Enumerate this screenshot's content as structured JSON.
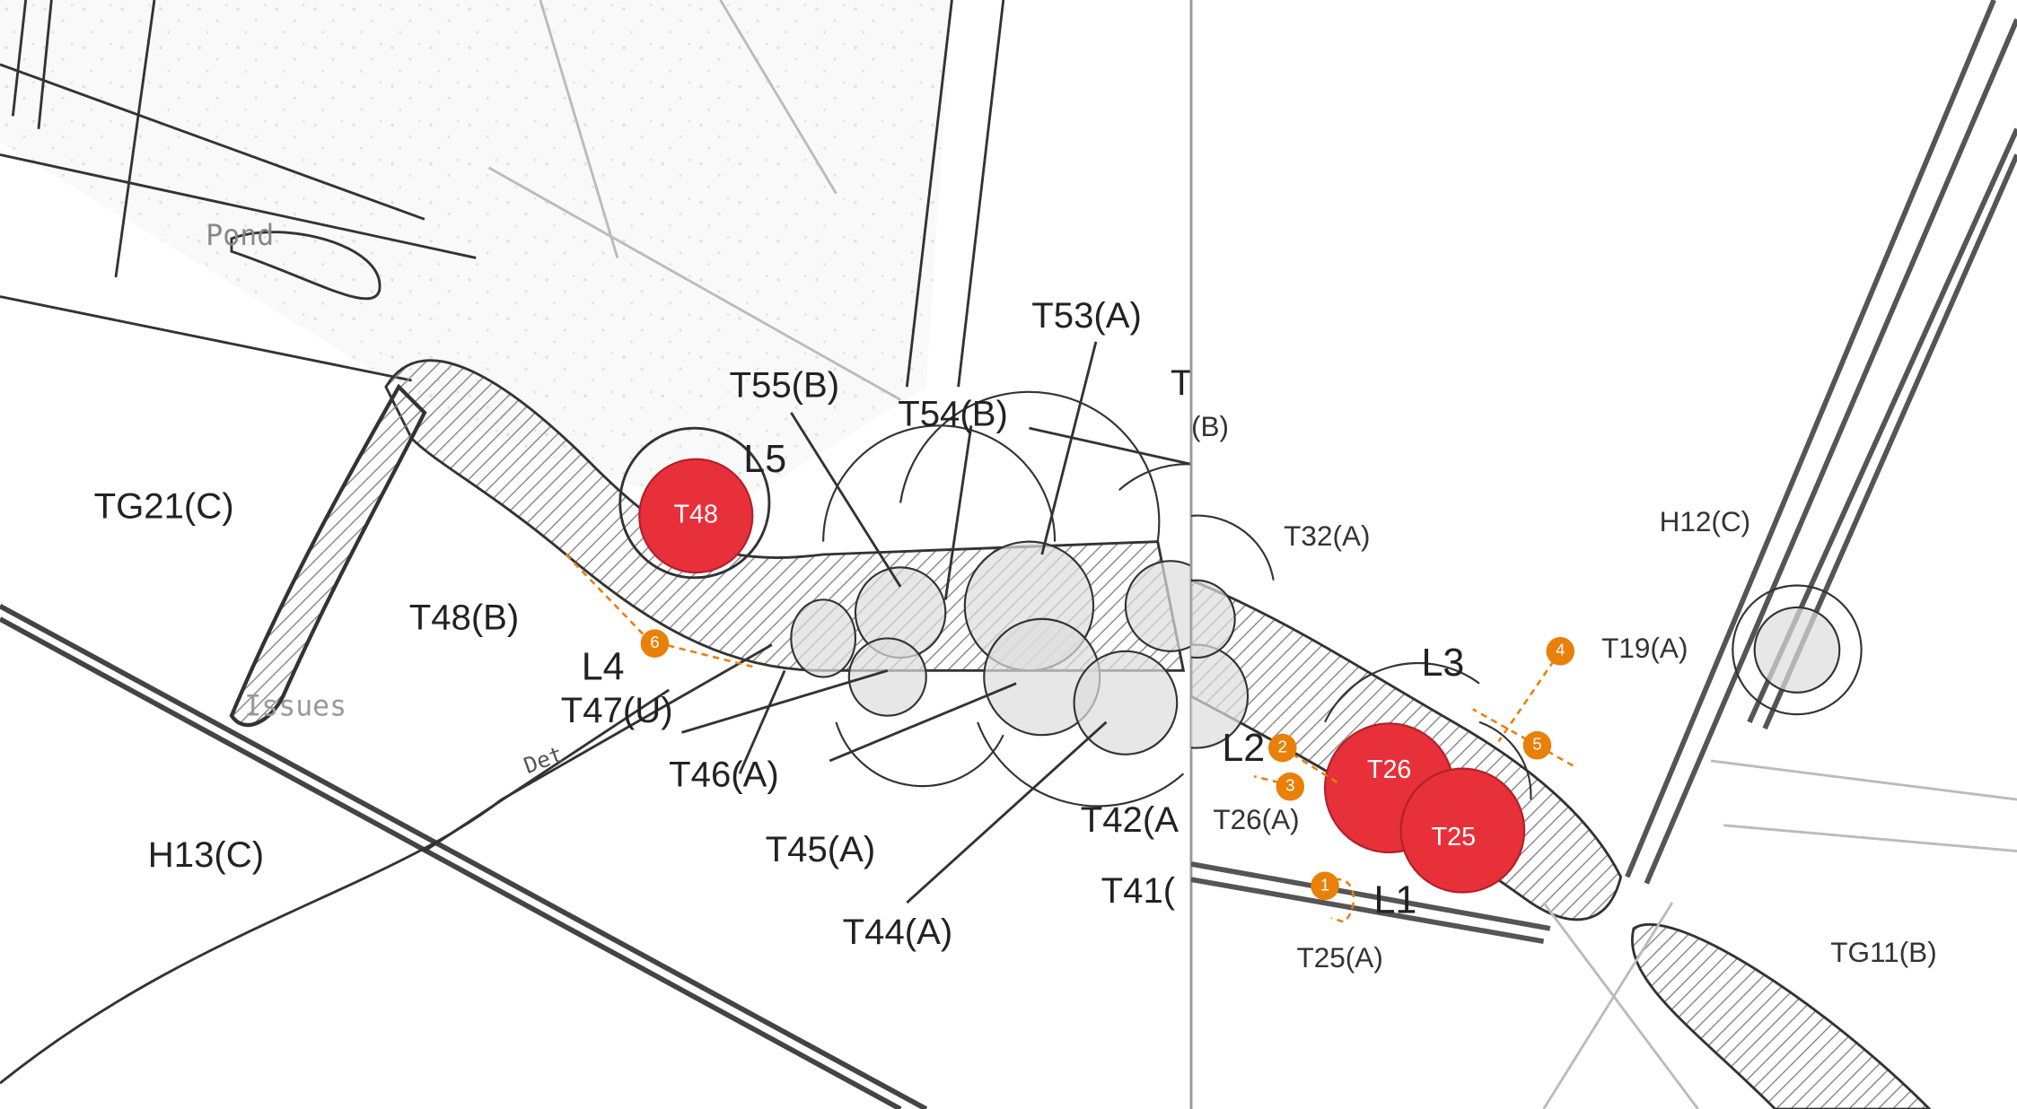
{
  "left_panel": {
    "annotations": [
      "Pond",
      "Issues",
      "Det"
    ],
    "tree_labels": [
      "TG21(C)",
      "T48(B)",
      "T47(U)",
      "T46(A)",
      "T45(A)",
      "T44(A)",
      "T42(A",
      "T41(",
      "H13(C)",
      "T55(B)",
      "T54(B)",
      "T53(A)",
      "T"
    ],
    "locations": [
      "L4",
      "L5"
    ],
    "protected_trees": [
      "T48"
    ],
    "markers": [
      "6"
    ]
  },
  "right_panel": {
    "tree_labels": [
      "(B)",
      "T32(A)",
      "H12(C)",
      "T19(A)",
      "T26(A)",
      "T25(A)",
      "TG11(B)"
    ],
    "locations": [
      "L3",
      "L2",
      "L1"
    ],
    "protected_trees": [
      "T26",
      "T25"
    ],
    "markers": [
      "1",
      "2",
      "3",
      "4",
      "5"
    ]
  }
}
